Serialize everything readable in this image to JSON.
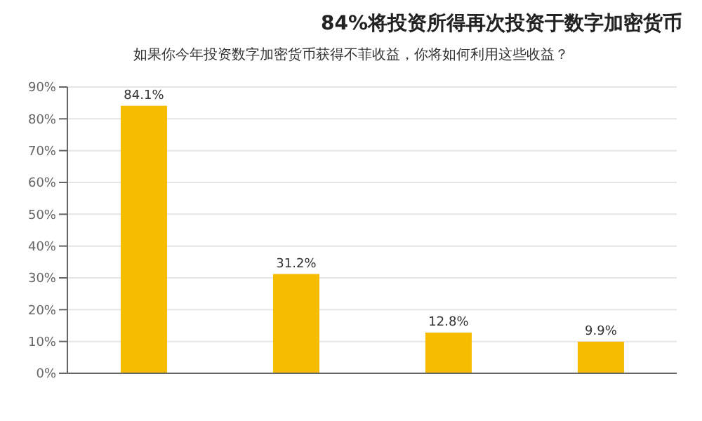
{
  "chart_data": {
    "type": "bar",
    "title": "84%将投资所得再次投资于数字加密货币",
    "subtitle": "如果你今年投资数字加密货币获得不菲收益，你将如何利用这些收益？",
    "categories": [
      null,
      null,
      null,
      null
    ],
    "values": [
      84.1,
      31.2,
      12.8,
      9.9
    ],
    "value_labels": [
      "84.1%",
      "31.2%",
      "12.8%",
      "9.9%"
    ],
    "color": "#f5bc00",
    "ylim": [
      0,
      90
    ],
    "yticks": [
      {
        "value": 0,
        "label": "0%"
      },
      {
        "value": 10,
        "label": "10%"
      },
      {
        "value": 20,
        "label": "20%"
      },
      {
        "value": 30,
        "label": "30%"
      },
      {
        "value": 40,
        "label": "40%"
      },
      {
        "value": 50,
        "label": "50%"
      },
      {
        "value": 60,
        "label": "60%"
      },
      {
        "value": 70,
        "label": "70%"
      },
      {
        "value": 80,
        "label": "80%"
      },
      {
        "value": 90,
        "label": "90%"
      }
    ],
    "grid": "y"
  }
}
